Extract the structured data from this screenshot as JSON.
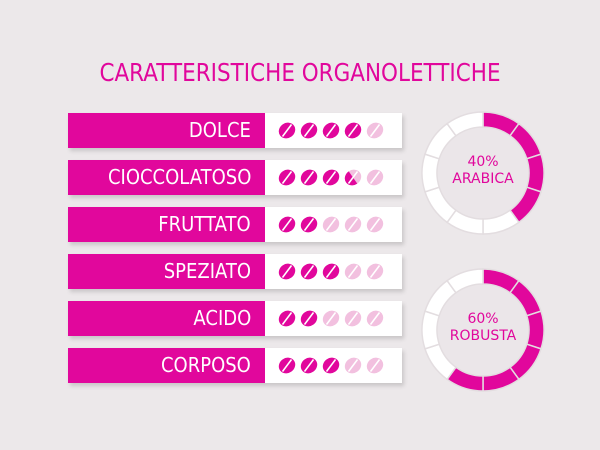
{
  "title": "CARATTERISTICHE ORGANOLETTICHE",
  "colors": {
    "accent": "#e1079c",
    "bean_empty": "#f2c0df",
    "background": "#ece8ea"
  },
  "max_rating": 5,
  "characteristics": [
    {
      "label": "DOLCE",
      "rating": 4
    },
    {
      "label": "CIOCCOLATOSO",
      "rating": 3.5
    },
    {
      "label": "FRUTTATO",
      "rating": 2
    },
    {
      "label": "SPEZIATO",
      "rating": 3
    },
    {
      "label": "ACIDO",
      "rating": 2
    },
    {
      "label": "CORPOSO",
      "rating": 3
    }
  ],
  "blend": [
    {
      "percent_label": "40%",
      "name": "ARABICA",
      "percent": 40
    },
    {
      "percent_label": "60%",
      "name": "ROBUSTA",
      "percent": 60
    }
  ]
}
